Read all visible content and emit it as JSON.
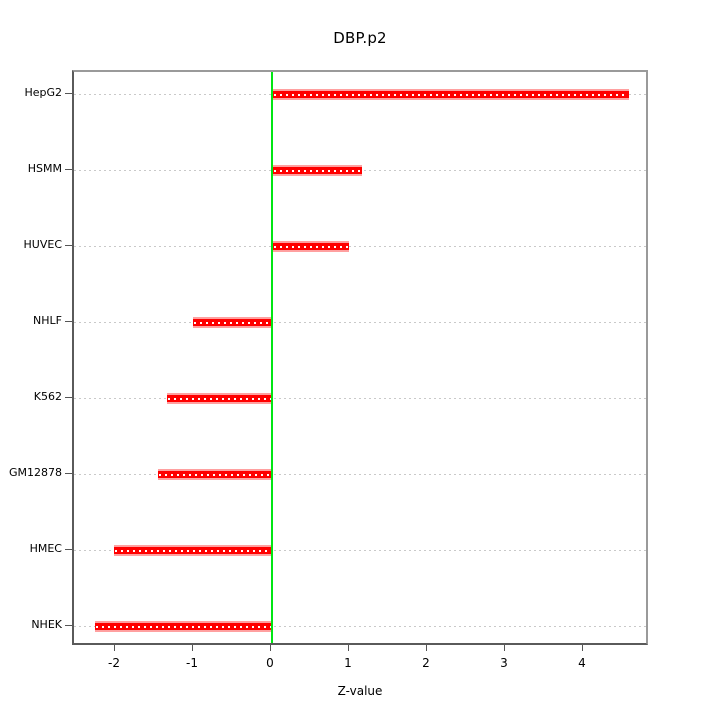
{
  "chart_data": {
    "type": "bar",
    "orientation": "horizontal",
    "title": "DBP.p2",
    "xlabel": "Z-value",
    "categories": [
      "HepG2",
      "HSMM",
      "HUVEC",
      "NHLF",
      "K562",
      "GM12878",
      "HMEC",
      "NHEK"
    ],
    "values": [
      4.57,
      1.14,
      0.97,
      -1.01,
      -1.35,
      -1.46,
      -2.03,
      -2.27
    ],
    "xticks": [
      -2,
      -1,
      0,
      1,
      2,
      3,
      4
    ],
    "xlim": [
      -2.54,
      4.85
    ],
    "grid": "horizontal-dotted",
    "legend": "none",
    "bar_color": "#ff0000",
    "bar_edge_color": "#ffa0a0",
    "bar_dot_color": "#ffffff",
    "zero_line_color": "#00e613",
    "grid_color": "#c9c9c9",
    "frame_color": "#9a9a9a",
    "axis_color": "#555555",
    "background_color": "#ffffff"
  }
}
